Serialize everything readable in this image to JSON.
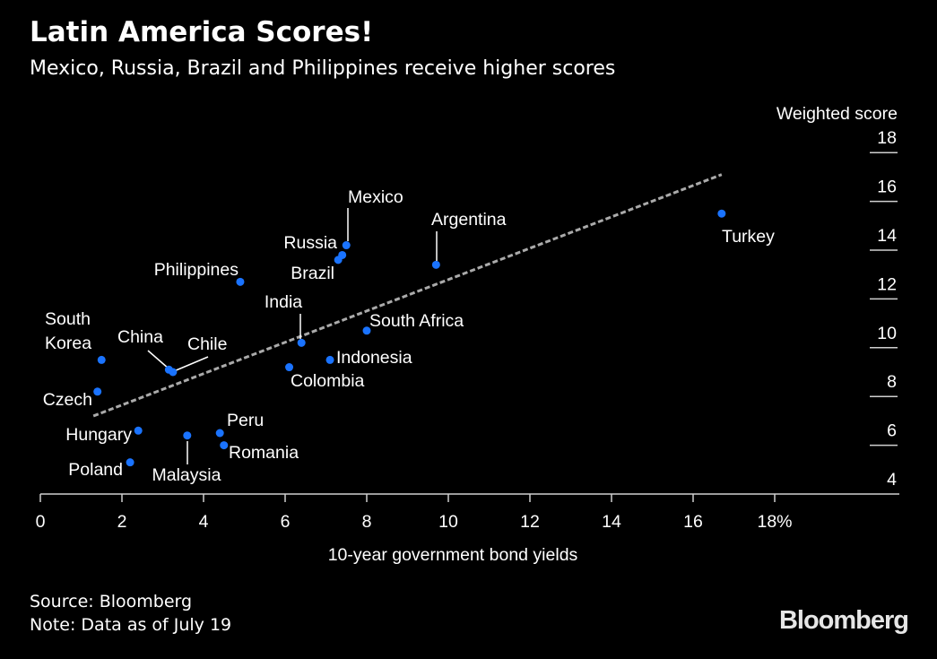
{
  "header": {
    "title": "Latin America Scores!",
    "subtitle": "Mexico, Russia, Brazil and Philippines receive higher scores"
  },
  "footer": {
    "source": "Source: Bloomberg",
    "note": "Note: Data as of July 19",
    "logo": "Bloomberg"
  },
  "colors": {
    "point": "#1a73ff",
    "trend": "#aaaaaa",
    "background": "#000000",
    "text": "#ffffff"
  },
  "chart_data": {
    "type": "scatter",
    "title": "Latin America Scores!",
    "xlabel": "10-year government bond yields",
    "ylabel": "Weighted score",
    "xlim": [
      0,
      18
    ],
    "ylim": [
      4,
      18
    ],
    "xticks": [
      "0",
      "2",
      "4",
      "6",
      "8",
      "10",
      "12",
      "14",
      "16",
      "18%"
    ],
    "xtick_values": [
      0,
      2,
      4,
      6,
      8,
      10,
      12,
      14,
      16,
      18
    ],
    "yticks": [
      "18",
      "16",
      "14",
      "12",
      "10",
      "8",
      "6",
      "4"
    ],
    "ytick_values": [
      18,
      16,
      14,
      12,
      10,
      8,
      6,
      4
    ],
    "grid": false,
    "points": [
      {
        "name": "Turkey",
        "x": 16.7,
        "y": 15.5
      },
      {
        "name": "Mexico",
        "x": 7.5,
        "y": 14.2
      },
      {
        "name": "Russia",
        "x": 7.4,
        "y": 13.8
      },
      {
        "name": "Brazil",
        "x": 7.3,
        "y": 13.6
      },
      {
        "name": "Argentina",
        "x": 9.7,
        "y": 13.4
      },
      {
        "name": "Philippines",
        "x": 4.9,
        "y": 12.7
      },
      {
        "name": "India",
        "x": 6.4,
        "y": 10.2
      },
      {
        "name": "South Africa",
        "x": 8.0,
        "y": 10.7
      },
      {
        "name": "Indonesia",
        "x": 7.1,
        "y": 9.5
      },
      {
        "name": "Colombia",
        "x": 6.1,
        "y": 9.2
      },
      {
        "name": "South Korea",
        "x": 1.5,
        "y": 9.5
      },
      {
        "name": "China",
        "x": 3.15,
        "y": 9.1
      },
      {
        "name": "Chile",
        "x": 3.25,
        "y": 9.0
      },
      {
        "name": "Czech",
        "x": 1.4,
        "y": 8.2
      },
      {
        "name": "Hungary",
        "x": 2.4,
        "y": 6.6
      },
      {
        "name": "Malaysia",
        "x": 3.6,
        "y": 6.4
      },
      {
        "name": "Peru",
        "x": 4.4,
        "y": 6.5
      },
      {
        "name": "Romania",
        "x": 4.5,
        "y": 6.0
      },
      {
        "name": "Poland",
        "x": 2.2,
        "y": 5.3
      }
    ],
    "trendline": {
      "style": "dashed",
      "x": [
        1.3,
        16.7
      ],
      "y": [
        7.2,
        17.1
      ]
    }
  }
}
